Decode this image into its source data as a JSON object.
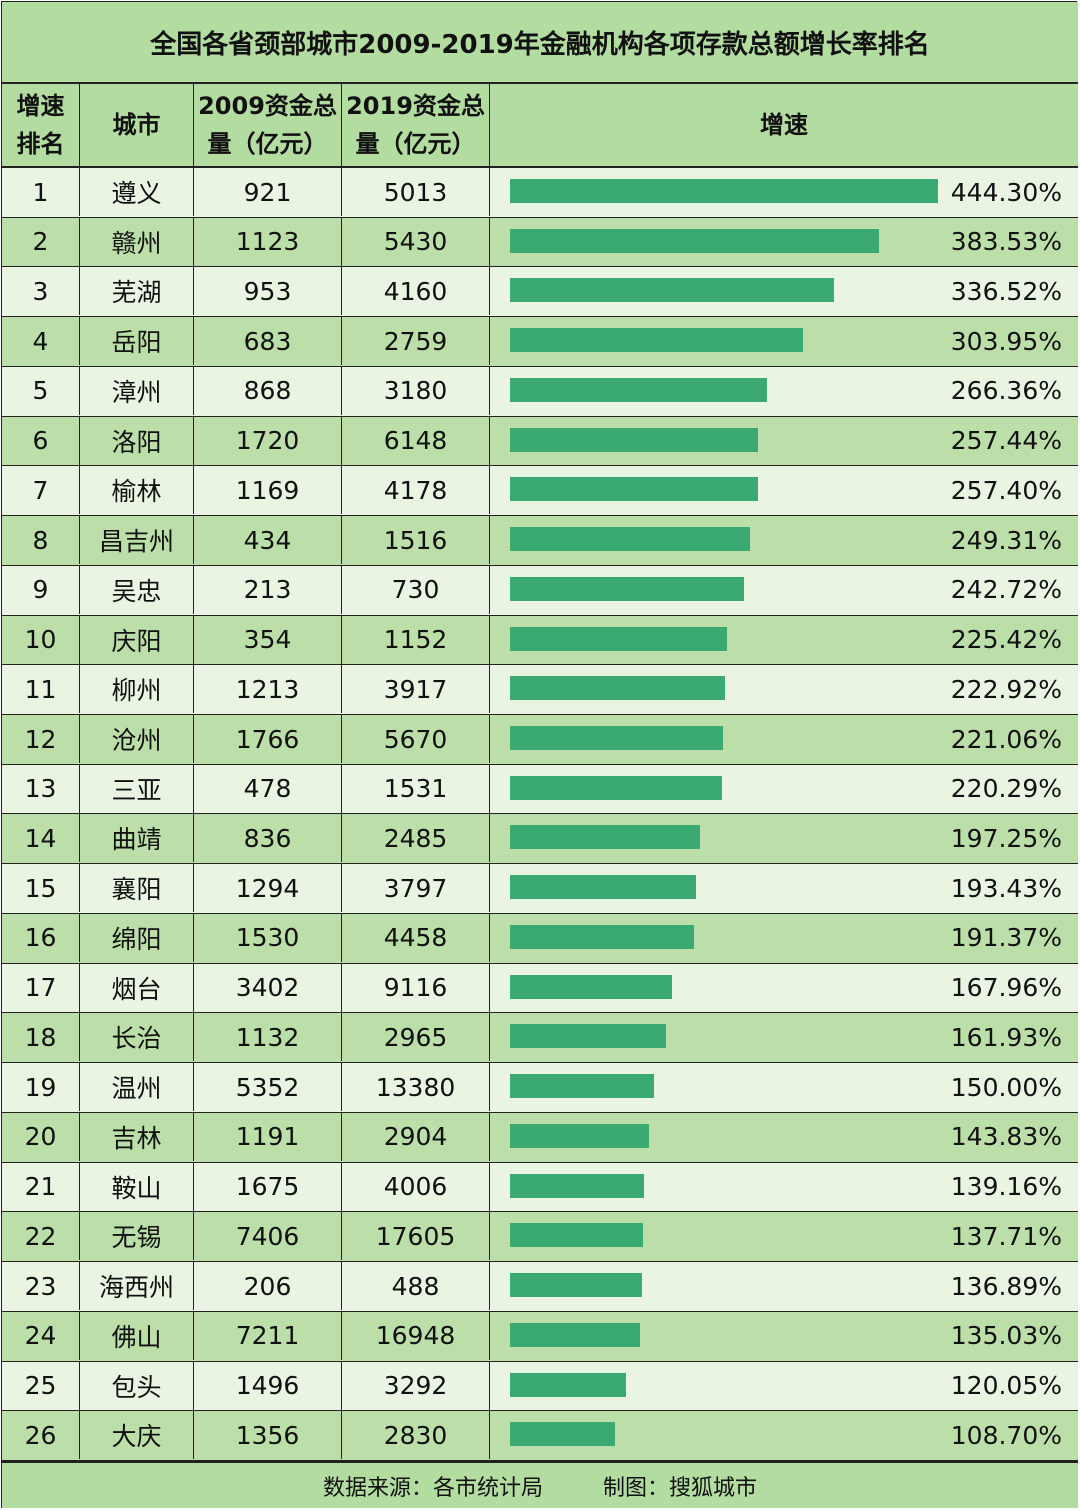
{
  "title": "全国各省颈部城市2009-2019年金融机构各项存款总额增长率排名",
  "header": {
    "rank": "增速\n排名",
    "city": "城市",
    "y2009": "2009资金总\n量（亿元）",
    "y2019": "2019资金总\n量（亿元）",
    "growth": "增速"
  },
  "footer": {
    "source": "数据来源：各市统计局",
    "credit": "制图：搜狐城市"
  },
  "colors": {
    "header_bg": "#b3dca1",
    "row_light": "#e9f4e3",
    "row_dark": "#bcdfaa",
    "bar": "#3aaa72"
  },
  "chart_data": {
    "type": "table",
    "columns": [
      "增速排名",
      "城市",
      "2009资金总量（亿元）",
      "2019资金总量（亿元）",
      "增速"
    ],
    "bar_max": 444.3,
    "rows": [
      {
        "rank": "1",
        "city": "遵义",
        "v2009": "921",
        "v2019": "5013",
        "growth": 444.3,
        "growth_label": "444.30%"
      },
      {
        "rank": "2",
        "city": "赣州",
        "v2009": "1123",
        "v2019": "5430",
        "growth": 383.53,
        "growth_label": "383.53%"
      },
      {
        "rank": "3",
        "city": "芜湖",
        "v2009": "953",
        "v2019": "4160",
        "growth": 336.52,
        "growth_label": "336.52%"
      },
      {
        "rank": "4",
        "city": "岳阳",
        "v2009": "683",
        "v2019": "2759",
        "growth": 303.95,
        "growth_label": "303.95%"
      },
      {
        "rank": "5",
        "city": "漳州",
        "v2009": "868",
        "v2019": "3180",
        "growth": 266.36,
        "growth_label": "266.36%"
      },
      {
        "rank": "6",
        "city": "洛阳",
        "v2009": "1720",
        "v2019": "6148",
        "growth": 257.44,
        "growth_label": "257.44%"
      },
      {
        "rank": "7",
        "city": "榆林",
        "v2009": "1169",
        "v2019": "4178",
        "growth": 257.4,
        "growth_label": "257.40%"
      },
      {
        "rank": "8",
        "city": "昌吉州",
        "v2009": "434",
        "v2019": "1516",
        "growth": 249.31,
        "growth_label": "249.31%"
      },
      {
        "rank": "9",
        "city": "吴忠",
        "v2009": "213",
        "v2019": "730",
        "growth": 242.72,
        "growth_label": "242.72%"
      },
      {
        "rank": "10",
        "city": "庆阳",
        "v2009": "354",
        "v2019": "1152",
        "growth": 225.42,
        "growth_label": "225.42%"
      },
      {
        "rank": "11",
        "city": "柳州",
        "v2009": "1213",
        "v2019": "3917",
        "growth": 222.92,
        "growth_label": "222.92%"
      },
      {
        "rank": "12",
        "city": "沧州",
        "v2009": "1766",
        "v2019": "5670",
        "growth": 221.06,
        "growth_label": "221.06%"
      },
      {
        "rank": "13",
        "city": "三亚",
        "v2009": "478",
        "v2019": "1531",
        "growth": 220.29,
        "growth_label": "220.29%"
      },
      {
        "rank": "14",
        "city": "曲靖",
        "v2009": "836",
        "v2019": "2485",
        "growth": 197.25,
        "growth_label": "197.25%"
      },
      {
        "rank": "15",
        "city": "襄阳",
        "v2009": "1294",
        "v2019": "3797",
        "growth": 193.43,
        "growth_label": "193.43%"
      },
      {
        "rank": "16",
        "city": "绵阳",
        "v2009": "1530",
        "v2019": "4458",
        "growth": 191.37,
        "growth_label": "191.37%"
      },
      {
        "rank": "17",
        "city": "烟台",
        "v2009": "3402",
        "v2019": "9116",
        "growth": 167.96,
        "growth_label": "167.96%"
      },
      {
        "rank": "18",
        "city": "长治",
        "v2009": "1132",
        "v2019": "2965",
        "growth": 161.93,
        "growth_label": "161.93%"
      },
      {
        "rank": "19",
        "city": "温州",
        "v2009": "5352",
        "v2019": "13380",
        "growth": 150.0,
        "growth_label": "150.00%"
      },
      {
        "rank": "20",
        "city": "吉林",
        "v2009": "1191",
        "v2019": "2904",
        "growth": 143.83,
        "growth_label": "143.83%"
      },
      {
        "rank": "21",
        "city": "鞍山",
        "v2009": "1675",
        "v2019": "4006",
        "growth": 139.16,
        "growth_label": "139.16%"
      },
      {
        "rank": "22",
        "city": "无锡",
        "v2009": "7406",
        "v2019": "17605",
        "growth": 137.71,
        "growth_label": "137.71%"
      },
      {
        "rank": "23",
        "city": "海西州",
        "v2009": "206",
        "v2019": "488",
        "growth": 136.89,
        "growth_label": "136.89%"
      },
      {
        "rank": "24",
        "city": "佛山",
        "v2009": "7211",
        "v2019": "16948",
        "growth": 135.03,
        "growth_label": "135.03%"
      },
      {
        "rank": "25",
        "city": "包头",
        "v2009": "1496",
        "v2019": "3292",
        "growth": 120.05,
        "growth_label": "120.05%"
      },
      {
        "rank": "26",
        "city": "大庆",
        "v2009": "1356",
        "v2019": "2830",
        "growth": 108.7,
        "growth_label": "108.70%"
      }
    ]
  }
}
